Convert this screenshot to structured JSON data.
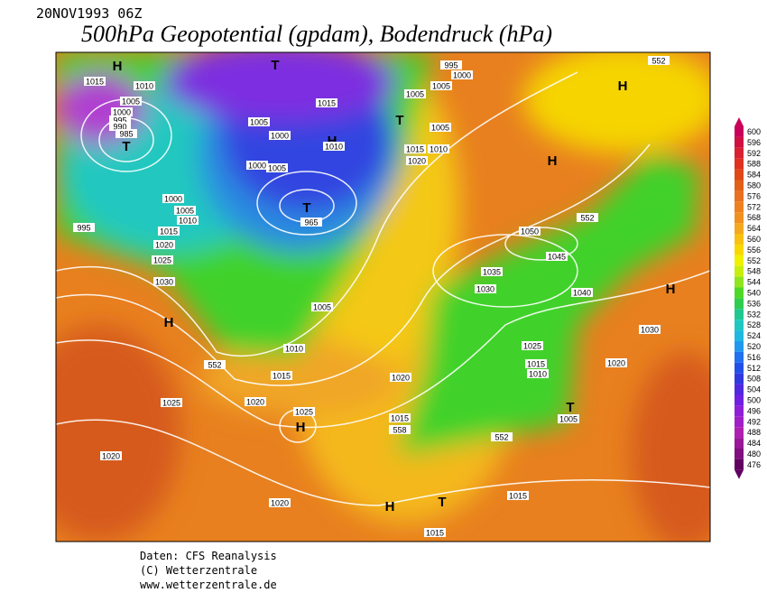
{
  "header": {
    "date": "20NOV1993 06Z",
    "title": "500hPa Geopotential (gpdam), Bodendruck (hPa)"
  },
  "map": {
    "labels": [
      "H",
      "T",
      "H",
      "1015",
      "1010",
      "1005",
      "1000",
      "995",
      "990",
      "985",
      "T",
      "1015",
      "T",
      "1005",
      "1005",
      "1000",
      "H",
      "1010",
      "1000",
      "1005",
      "T",
      "965",
      "1000",
      "1005",
      "1010",
      "1015",
      "995",
      "1020",
      "1025",
      "1030",
      "H",
      "1005",
      "1010",
      "552",
      "1015",
      "1020",
      "1025",
      "H",
      "1025",
      "1020",
      "1020",
      "H",
      "1050",
      "1045",
      "1035",
      "1030",
      "1040",
      "H",
      "1030",
      "1025",
      "1015",
      "1010",
      "1020",
      "1020",
      "T",
      "1005",
      "1015",
      "558",
      "552",
      "552",
      "552",
      "1015",
      "H",
      "T",
      "1015",
      "1020",
      "1015",
      "1010",
      "1005",
      "995",
      "1000",
      "1005"
    ]
  },
  "legend": {
    "levels": [
      600,
      596,
      592,
      588,
      584,
      580,
      576,
      572,
      568,
      564,
      560,
      556,
      552,
      548,
      544,
      540,
      536,
      532,
      528,
      524,
      520,
      516,
      512,
      508,
      504,
      500,
      496,
      492,
      488,
      484,
      480,
      476
    ]
  },
  "footer": {
    "source": "Daten: CFS Reanalysis",
    "copyright": "(C) Wetterzentrale",
    "url": "www.wetterzentrale.de"
  }
}
